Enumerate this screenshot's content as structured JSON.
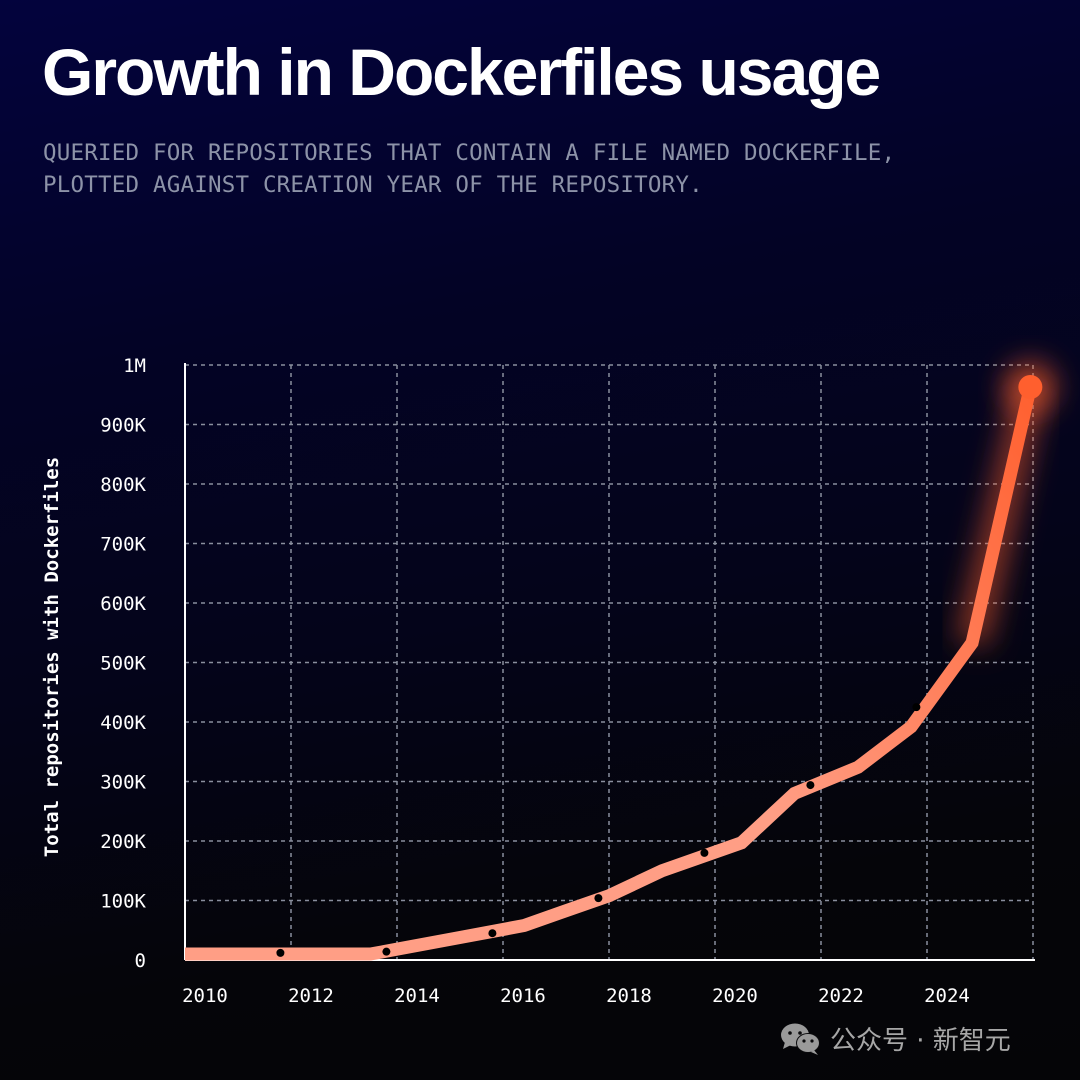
{
  "header": {
    "title": "Growth in Dockerfiles usage",
    "subtitle_lines": [
      "QUERIED FOR REPOSITORIES THAT CONTAIN A FILE NAMED DOCKERFILE,",
      "PLOTTED AGAINST CREATION YEAR OF THE REPOSITORY."
    ]
  },
  "watermark": {
    "icon": "wechat-icon",
    "text": "公众号 · 新智元"
  },
  "colors": {
    "line_start": "#ff9e85",
    "line_end": "#ff5f2e",
    "marker": "#000000",
    "grid": "#8a8f9e",
    "axis": "#ffffff"
  },
  "chart_data": {
    "type": "line",
    "title": "Growth in Dockerfiles usage",
    "xlabel": "",
    "ylabel": "Total repositories with Dockerfiles",
    "xlim": [
      2010,
      2026
    ],
    "ylim": [
      0,
      1000000
    ],
    "x_ticks": [
      2010,
      2012,
      2014,
      2016,
      2018,
      2020,
      2022,
      2024
    ],
    "x_tick_labels": [
      "2010",
      "2012",
      "2014",
      "2016",
      "2018",
      "2020",
      "2022",
      "2024"
    ],
    "y_ticks": [
      0,
      100000,
      200000,
      300000,
      400000,
      500000,
      600000,
      700000,
      800000,
      900000,
      1000000
    ],
    "y_tick_labels": [
      "0",
      "100K",
      "200K",
      "300K",
      "400K",
      "500K",
      "600K",
      "700K",
      "800K",
      "900K",
      "1M"
    ],
    "grid": true,
    "legend": "none",
    "series": [
      {
        "name": "Total repositories with Dockerfiles",
        "x": [
          2010,
          2013.5,
          2015.2,
          2016.4,
          2017.1,
          2018.0,
          2019.0,
          2020.5,
          2021.5,
          2022.7,
          2023.7,
          2024.85,
          2025.95
        ],
        "y": [
          10000,
          10000,
          38000,
          58000,
          80000,
          108000,
          150000,
          197000,
          280000,
          324000,
          392000,
          533000,
          963000
        ]
      }
    ],
    "markers": {
      "x": [
        2011.8,
        2013.8,
        2015.8,
        2017.8,
        2019.8,
        2021.8,
        2023.8
      ],
      "y": [
        12000,
        14000,
        45000,
        104000,
        180000,
        294000,
        425000
      ]
    },
    "end_point": {
      "x": 2025.95,
      "y": 963000
    }
  }
}
